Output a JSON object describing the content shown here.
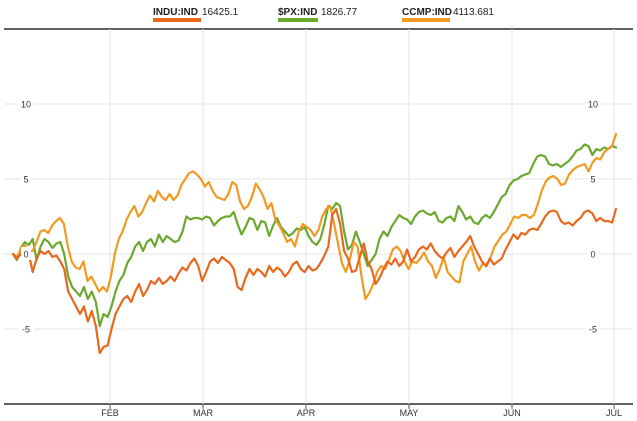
{
  "chart_data": {
    "type": "line",
    "title": "",
    "xlabel": "",
    "ylabel": "",
    "ylim": [
      -10,
      15
    ],
    "x_tick_labels": [
      "FEB",
      "MAR",
      "APR",
      "MAY",
      "JUN",
      "JUL"
    ],
    "y_tick_labels": [
      "10",
      "5",
      "0",
      "-5"
    ],
    "y_tick_values": [
      10,
      5,
      0,
      -5
    ],
    "grid": true,
    "legend_placement": "top-center",
    "series": [
      {
        "name": "INDU:IND",
        "last_value": "16425.1",
        "color": "#e8681e",
        "values": [
          0,
          -0.3,
          0,
          0.2,
          0,
          -1.2,
          -0.3,
          0.2,
          0,
          0.2,
          -0.2,
          -0.1,
          -0.5,
          -1,
          -2.5,
          -3,
          -3.5,
          -4,
          -3.5,
          -4.5,
          -3.8,
          -4.8,
          -6.6,
          -6.2,
          -6.1,
          -5,
          -4,
          -3.5,
          -3,
          -2.8,
          -3.2,
          -2.5,
          -2,
          -2.8,
          -2.4,
          -1.8,
          -2,
          -1.6,
          -2,
          -1.8,
          -1.5,
          -1.8,
          -1.3,
          -0.9,
          -1.1,
          -0.6,
          -0.3,
          -0.8,
          -1.8,
          -1.2,
          -0.5,
          -0.3,
          -0.6,
          -0.2,
          -0.4,
          -0.6,
          -1,
          -2.2,
          -2.4,
          -1.6,
          -1,
          -1.4,
          -1,
          -1.2,
          -1.5,
          -0.8,
          -1.2,
          -0.9,
          -1.1,
          -1.5,
          -1.2,
          -0.7,
          -0.5,
          -1,
          -1.2,
          -0.8,
          -1.1,
          -1,
          -0.6,
          -0.1,
          0.5,
          2.6,
          3,
          2,
          0.2,
          -0.3,
          -1.2,
          -1.1,
          -0.2,
          0.7,
          -0.5,
          -1,
          -2,
          -1.6,
          -1,
          -0.5,
          -0.7,
          -0.3,
          -0.8,
          -0.5,
          0.3,
          -0.5,
          -0.2,
          0.3,
          0.5,
          0.3,
          0.7,
          0.2,
          -0.1,
          -0.3,
          0.1,
          0.4,
          -0.2,
          0.2,
          0.5,
          0.8,
          1.2,
          0.5,
          0,
          -0.5,
          -0.8,
          -0.3,
          -0.7,
          -0.5,
          -0.3,
          0.3,
          0.8,
          1.3,
          1,
          1.4,
          1.3,
          1.6,
          1.7,
          1.6,
          2,
          2.5,
          2.8,
          2.9,
          2.8,
          2.2,
          2,
          2.1,
          1.9,
          2.2,
          2.4,
          2.8,
          2.9,
          2.7,
          2.2,
          2.4,
          2.2,
          2.2,
          2.1,
          3
        ]
      },
      {
        "name": "$PX:IND",
        "last_value": "1826.77",
        "color": "#6ba82e",
        "values": [
          0,
          -0.4,
          0.4,
          0.8,
          0.6,
          1,
          -0.4,
          0.5,
          1,
          0.8,
          0.4,
          0.7,
          0.8,
          0,
          -1.5,
          -2.2,
          -2.5,
          -2.8,
          -2.2,
          -3,
          -2.5,
          -3.2,
          -4.8,
          -4,
          -4.2,
          -3.5,
          -2.5,
          -1.8,
          -1.4,
          -0.6,
          -0.2,
          0.5,
          0.8,
          0.2,
          0.8,
          1,
          0.5,
          1.3,
          0.8,
          1.2,
          1,
          0.8,
          0.9,
          1.5,
          2.5,
          2.3,
          2.4,
          2.4,
          2.3,
          2.5,
          2.4,
          1.9,
          2.2,
          2.4,
          2.5,
          2.5,
          2.8,
          2,
          1.3,
          1.8,
          2.4,
          2.3,
          1.6,
          2.2,
          2.1,
          1.2,
          1.9,
          2.4,
          1.8,
          1.5,
          1.2,
          1.4,
          1.7,
          1.6,
          1.8,
          1.2,
          0.8,
          0.6,
          1,
          2,
          3.2,
          3,
          3.4,
          3.2,
          1.5,
          0.3,
          0.6,
          1.5,
          0.8,
          0,
          -0.8,
          -0.4,
          0,
          1,
          1.5,
          1.2,
          1.8,
          2.2,
          2.6,
          2.4,
          2.3,
          2,
          2.5,
          2.8,
          2.9,
          2.7,
          2.6,
          2.8,
          2.2,
          2.1,
          2.4,
          2.5,
          2.2,
          3.2,
          2.8,
          2.3,
          2.5,
          2.1,
          2,
          2.4,
          2.6,
          2.4,
          2.8,
          3.3,
          3.8,
          4,
          4.6,
          4.9,
          5,
          5.2,
          5.3,
          5.4,
          6,
          6.5,
          6.6,
          6.5,
          6,
          5.9,
          6,
          5.8,
          6,
          6.2,
          6.5,
          6.9,
          7,
          7.3,
          7.2,
          6.6,
          7,
          6.9,
          7.1,
          7,
          7.2,
          7.1
        ]
      },
      {
        "name": "CCMP:IND",
        "last_value": "4113.681",
        "color": "#f09a21",
        "values": [
          0,
          -0.2,
          0.3,
          0.6,
          0.2,
          0.2,
          0.8,
          1.5,
          1.6,
          1.4,
          1.9,
          2.2,
          2.4,
          2,
          0.5,
          -0.5,
          -0.9,
          -1,
          -0.5,
          -1.8,
          -1.5,
          -2,
          -2.5,
          -2.2,
          -2.5,
          -1.5,
          0,
          1,
          1.5,
          2.3,
          2.8,
          3.2,
          2.5,
          2.8,
          3.4,
          3.9,
          3.5,
          4.2,
          3.8,
          3.6,
          4,
          3.6,
          3.9,
          4.6,
          5,
          5.4,
          5.5,
          5.3,
          5,
          4.5,
          4.8,
          4.2,
          3.8,
          3.7,
          3.6,
          4,
          4.8,
          4.6,
          3.5,
          3,
          3.2,
          3.8,
          4.7,
          4.3,
          3.8,
          3,
          3.4,
          2.3,
          1.9,
          1.4,
          0.8,
          1,
          0.5,
          1.5,
          2,
          1.8,
          1.6,
          1.2,
          1.6,
          2.5,
          3,
          3.2,
          2,
          0.7,
          -0.6,
          -1.2,
          -0.4,
          0.8,
          0.5,
          -1.5,
          -3,
          -2.6,
          -2,
          -1.2,
          -0.8,
          -1,
          -0.4,
          0.3,
          0.5,
          0.2,
          -0.5,
          -1,
          -0.5,
          -0.6,
          -0.3,
          0.1,
          -0.5,
          -0.8,
          -1.6,
          -1,
          -0.2,
          -1.2,
          -1.5,
          -1.8,
          -1.9,
          -0.5,
          0,
          0.5,
          -0.5,
          -1.1,
          -0.6,
          -0.8,
          -0.2,
          0.5,
          0.9,
          1.3,
          1.5,
          2,
          2.5,
          2.4,
          2.6,
          2.6,
          2.4,
          2.6,
          3.3,
          4.2,
          4.8,
          5.1,
          5.2,
          5,
          4.6,
          4.7,
          5.3,
          5.6,
          5.8,
          5.9,
          6,
          5.5,
          6.1,
          6.4,
          6.3,
          6.8,
          7,
          7.2,
          8
        ]
      }
    ]
  }
}
